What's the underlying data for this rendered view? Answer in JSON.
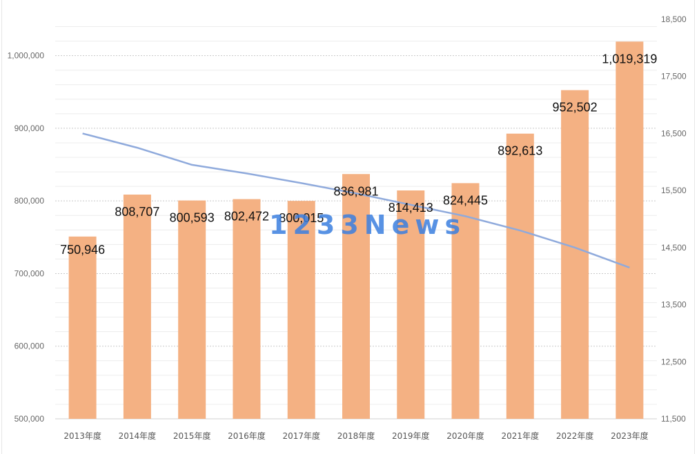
{
  "watermark": "1233News",
  "chart_data": {
    "type": "bar",
    "categories": [
      "2013年度",
      "2014年度",
      "2015年度",
      "2016年度",
      "2017年度",
      "2018年度",
      "2019年度",
      "2020年度",
      "2021年度",
      "2022年度",
      "2023年度"
    ],
    "series": [
      {
        "type": "bar",
        "axis": "left",
        "values": [
          750946,
          808707,
          800593,
          802472,
          800015,
          836981,
          814413,
          824445,
          892613,
          952502,
          1019319
        ],
        "labels": [
          "750,946",
          "808,707",
          "800,593",
          "802,472",
          "800,015",
          "836,981",
          "814,413",
          "824,445",
          "892,613",
          "952,502",
          "1,019,319"
        ],
        "color": "#f4b183"
      },
      {
        "type": "line",
        "axis": "right",
        "values": [
          16500,
          16250,
          15950,
          15800,
          15630,
          15450,
          15250,
          15050,
          14800,
          14500,
          14150
        ],
        "color": "#8faadc"
      }
    ],
    "y_left": {
      "lim": [
        500000,
        1050000
      ],
      "ticks": [
        500000,
        600000,
        700000,
        800000,
        900000,
        1000000
      ],
      "tick_labels": [
        "500,000",
        "600,000",
        "700,000",
        "800,000",
        "900,000",
        "1,000,000"
      ]
    },
    "y_right": {
      "lim": [
        11500,
        18500
      ],
      "ticks": [
        11500,
        12500,
        13500,
        14500,
        15500,
        16500,
        17500,
        18500
      ],
      "tick_labels": [
        "11,500",
        "12,500",
        "13,500",
        "14,500",
        "15,500",
        "16,500",
        "17,500",
        "18,500"
      ]
    },
    "grid": true,
    "legend": "none"
  }
}
